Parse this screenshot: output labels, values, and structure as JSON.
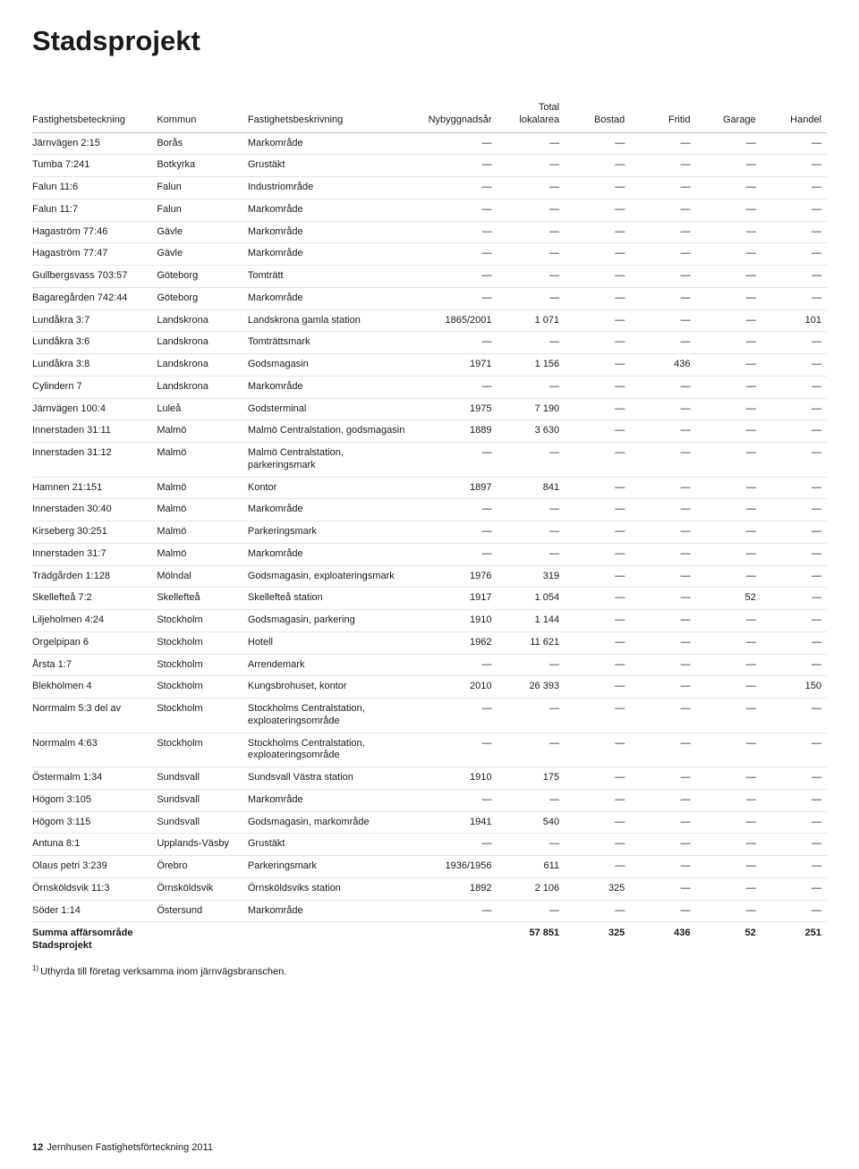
{
  "title": "Stadsprojekt",
  "columns": [
    {
      "key": "beteckning",
      "label": "Fastighetsbeteckning",
      "align": "left"
    },
    {
      "key": "kommun",
      "label": "Kommun",
      "align": "left"
    },
    {
      "key": "beskrivning",
      "label": "Fastighetsbeskrivning",
      "align": "left"
    },
    {
      "key": "ar",
      "label": "Nybyggnadsår",
      "align": "right"
    },
    {
      "key": "total",
      "label": "Total\nlokalarea",
      "align": "right"
    },
    {
      "key": "bostad",
      "label": "Bostad",
      "align": "right"
    },
    {
      "key": "fritid",
      "label": "Fritid",
      "align": "right"
    },
    {
      "key": "garage",
      "label": "Garage",
      "align": "right"
    },
    {
      "key": "handel",
      "label": "Handel",
      "align": "right"
    }
  ],
  "rows": [
    [
      "Järnvägen 2:15",
      "Borås",
      "Markområde",
      "—",
      "—",
      "—",
      "—",
      "—",
      "—"
    ],
    [
      "Tumba 7:241",
      "Botkyrka",
      "Grustäkt",
      "—",
      "—",
      "—",
      "—",
      "—",
      "—"
    ],
    [
      "Falun 11:6",
      "Falun",
      "Industriområde",
      "—",
      "—",
      "—",
      "—",
      "—",
      "—"
    ],
    [
      "Falun 11:7",
      "Falun",
      "Markområde",
      "—",
      "—",
      "—",
      "—",
      "—",
      "—"
    ],
    [
      "Hagaström 77:46",
      "Gävle",
      "Markområde",
      "—",
      "—",
      "—",
      "—",
      "—",
      "—"
    ],
    [
      "Hagaström 77:47",
      "Gävle",
      "Markområde",
      "—",
      "—",
      "—",
      "—",
      "—",
      "—"
    ],
    [
      "Gullbergsvass 703:57",
      "Göteborg",
      "Tomträtt",
      "—",
      "—",
      "—",
      "—",
      "—",
      "—"
    ],
    [
      "Bagaregården 742:44",
      "Göteborg",
      "Markområde",
      "—",
      "—",
      "—",
      "—",
      "—",
      "—"
    ],
    [
      "Lundåkra 3:7",
      "Landskrona",
      "Landskrona gamla station",
      "1865/2001",
      "1 071",
      "—",
      "—",
      "—",
      "101"
    ],
    [
      "Lundåkra 3:6",
      "Landskrona",
      "Tomträttsmark",
      "—",
      "—",
      "—",
      "—",
      "—",
      "—"
    ],
    [
      "Lundåkra 3:8",
      "Landskrona",
      "Godsmagasin",
      "1971",
      "1 156",
      "—",
      "436",
      "—",
      "—"
    ],
    [
      "Cylindern 7",
      "Landskrona",
      "Markområde",
      "—",
      "—",
      "—",
      "—",
      "—",
      "—"
    ],
    [
      "Järnvägen 100:4",
      "Luleå",
      "Godsterminal",
      "1975",
      "7 190",
      "—",
      "—",
      "—",
      "—"
    ],
    [
      "Innerstaden 31:11",
      "Malmö",
      "Malmö Centralstation, godsmagasin",
      "1889",
      "3 630",
      "—",
      "—",
      "—",
      "—"
    ],
    [
      "Innerstaden 31:12",
      "Malmö",
      "Malmö Centralstation, parkeringsmark",
      "—",
      "—",
      "—",
      "—",
      "—",
      "—"
    ],
    [
      "Hamnen 21:151",
      "Malmö",
      "Kontor",
      "1897",
      "841",
      "—",
      "—",
      "—",
      "—"
    ],
    [
      "Innerstaden 30:40",
      "Malmö",
      "Markområde",
      "—",
      "—",
      "—",
      "—",
      "—",
      "—"
    ],
    [
      "Kirseberg 30:251",
      "Malmö",
      "Parkeringsmark",
      "—",
      "—",
      "—",
      "—",
      "—",
      "—"
    ],
    [
      "Innerstaden 31:7",
      "Malmö",
      "Markområde",
      "—",
      "—",
      "—",
      "—",
      "—",
      "—"
    ],
    [
      "Trädgården 1:128",
      "Mölndal",
      "Godsmagasin, exploateringsmark",
      "1976",
      "319",
      "—",
      "—",
      "—",
      "—"
    ],
    [
      "Skellefteå 7:2",
      "Skellefteå",
      "Skellefteå station",
      "1917",
      "1 054",
      "—",
      "—",
      "52",
      "—"
    ],
    [
      "Liljeholmen 4:24",
      "Stockholm",
      "Godsmagasin, parkering",
      "1910",
      "1 144",
      "—",
      "—",
      "—",
      "—"
    ],
    [
      "Orgelpipan 6",
      "Stockholm",
      "Hotell",
      "1962",
      "11 621",
      "—",
      "—",
      "—",
      "—"
    ],
    [
      "Årsta 1:7",
      "Stockholm",
      "Arrendemark",
      "—",
      "—",
      "—",
      "—",
      "—",
      "—"
    ],
    [
      "Blekholmen 4",
      "Stockholm",
      "Kungsbrohuset, kontor",
      "2010",
      "26 393",
      "—",
      "—",
      "—",
      "150"
    ],
    [
      "Norrmalm 5:3 del av",
      "Stockholm",
      "Stockholms Centralstation, exploateringsområde",
      "—",
      "—",
      "—",
      "—",
      "—",
      "—"
    ],
    [
      "Norrmalm 4:63",
      "Stockholm",
      "Stockholms Centralstation, exploateringsområde",
      "—",
      "—",
      "—",
      "—",
      "—",
      "—"
    ],
    [
      "Östermalm 1:34",
      "Sundsvall",
      "Sundsvall Västra station",
      "1910",
      "175",
      "—",
      "—",
      "—",
      "—"
    ],
    [
      "Högom 3:105",
      "Sundsvall",
      "Markområde",
      "—",
      "—",
      "—",
      "—",
      "—",
      "—"
    ],
    [
      "Högom 3:115",
      "Sundsvall",
      "Godsmagasin, markområde",
      "1941",
      "540",
      "—",
      "—",
      "—",
      "—"
    ],
    [
      "Antuna 8:1",
      "Upplands-Väsby",
      "Grustäkt",
      "—",
      "—",
      "—",
      "—",
      "—",
      "—"
    ],
    [
      "Olaus petri 3:239",
      "Örebro",
      "Parkeringsmark",
      "1936/1956",
      "611",
      "—",
      "—",
      "—",
      "—"
    ],
    [
      "Örnsköldsvik 11:3",
      "Örnsköldsvik",
      "Örnsköldsviks station",
      "1892",
      "2 106",
      "325",
      "—",
      "—",
      "—"
    ],
    [
      "Söder 1:14",
      "Östersund",
      "Markområde",
      "—",
      "—",
      "—",
      "—",
      "—",
      "—"
    ]
  ],
  "summary": {
    "label": "Summa affärsområde Stadsprojekt",
    "values": [
      "",
      "",
      "",
      "57 851",
      "325",
      "436",
      "52",
      "251"
    ]
  },
  "footnote_marker": "1)",
  "footnote": "Uthyrda till företag verksamma inom järnvägsbranschen.",
  "footer": {
    "page_number": "12",
    "text": "Jernhusen Fastighetsförteckning 2011"
  }
}
